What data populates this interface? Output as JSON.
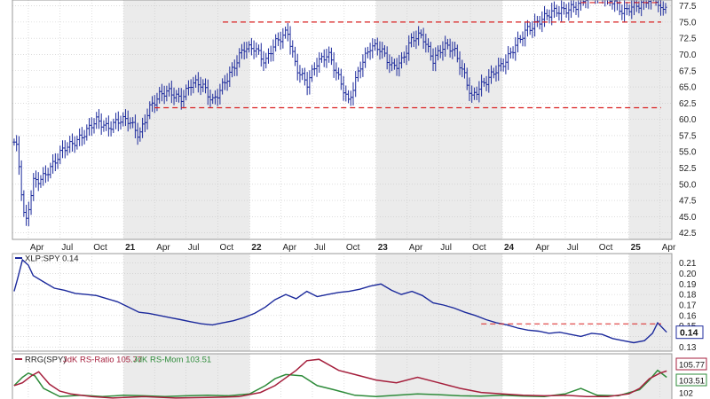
{
  "colors": {
    "price_bars": "#1c2a9c",
    "ratio_line": "#1c2a9c",
    "support_resistance": "#d92020",
    "rs_ratio_line": "#a51f3c",
    "rs_momentum_line": "#2e8b3a",
    "alt_shade": "#ebebeb",
    "grid": "#c8c8c8",
    "panel_border": "#9a9a9a"
  },
  "chart_data": [
    {
      "type": "ohlc",
      "title": "",
      "x_tick_labels": [
        "Apr",
        "Jul",
        "Oct",
        "21",
        "Apr",
        "Jul",
        "Oct",
        "22",
        "Apr",
        "Jul",
        "Oct",
        "23",
        "Apr",
        "Jul",
        "Oct",
        "24",
        "Apr",
        "Jul",
        "Oct",
        "25",
        "Apr"
      ],
      "x_tick_dates": [
        "2020-04-01",
        "2020-07-01",
        "2020-10-01",
        "2021-01-01",
        "2021-04-01",
        "2021-07-01",
        "2021-10-01",
        "2022-01-01",
        "2022-04-01",
        "2022-07-01",
        "2022-10-01",
        "2023-01-01",
        "2023-04-01",
        "2023-07-01",
        "2023-10-01",
        "2024-01-01",
        "2024-04-01",
        "2024-07-01",
        "2024-10-01",
        "2025-01-01",
        "2025-04-01"
      ],
      "y_tick_labels": [
        "42.5",
        "45.0",
        "47.5",
        "50.0",
        "52.5",
        "55.0",
        "57.5",
        "60.0",
        "62.5",
        "65.0",
        "67.5",
        "70.0",
        "72.5",
        "75.0",
        "77.5"
      ],
      "ylim": [
        41.5,
        78.4
      ],
      "series": [
        {
          "dates": [
            "2020-02-20",
            "2020-03-01",
            "2020-03-10",
            "2020-03-23",
            "2020-04-15",
            "2020-05-15",
            "2020-06-15",
            "2020-07-15",
            "2020-08-15",
            "2020-09-15",
            "2020-10-15",
            "2020-11-15",
            "2020-12-15",
            "2021-01-15",
            "2021-02-15",
            "2021-03-15",
            "2021-04-15",
            "2021-05-15",
            "2021-06-15",
            "2021-07-15",
            "2021-08-15",
            "2021-09-15",
            "2021-10-15",
            "2021-11-15",
            "2021-12-15",
            "2022-01-15",
            "2022-02-15",
            "2022-03-15",
            "2022-04-20",
            "2022-05-15",
            "2022-06-15",
            "2022-07-15",
            "2022-08-15",
            "2022-09-15",
            "2022-10-13",
            "2022-11-15",
            "2022-12-15",
            "2023-01-15",
            "2023-02-15",
            "2023-03-15",
            "2023-04-15",
            "2023-05-15",
            "2023-06-15",
            "2023-07-15",
            "2023-08-15",
            "2023-09-15",
            "2023-10-05",
            "2023-11-15",
            "2023-12-15",
            "2024-01-15",
            "2024-02-15",
            "2024-03-15",
            "2024-04-15",
            "2024-05-15",
            "2024-06-15",
            "2024-07-15",
            "2024-08-15",
            "2024-09-15",
            "2024-10-15",
            "2024-11-15",
            "2024-12-15",
            "2025-01-15",
            "2025-02-15",
            "2025-03-15",
            "2025-04-05",
            "2025-04-20"
          ],
          "close": [
            56.5,
            55.0,
            49.5,
            43.0,
            50.5,
            51.5,
            53.0,
            55.5,
            57.0,
            58.0,
            59.5,
            59.0,
            60.0,
            59.5,
            57.5,
            62.0,
            63.5,
            64.0,
            63.5,
            65.5,
            65.0,
            63.0,
            65.5,
            67.5,
            71.0,
            71.5,
            68.5,
            71.5,
            74.0,
            68.0,
            65.0,
            69.0,
            70.5,
            66.0,
            62.5,
            68.5,
            71.0,
            70.5,
            68.5,
            69.0,
            72.0,
            73.0,
            69.5,
            71.0,
            70.5,
            67.0,
            63.5,
            65.5,
            68.0,
            69.5,
            71.5,
            74.0,
            75.5,
            76.0,
            76.5,
            77.5,
            78.0,
            79.0,
            79.5,
            78.5,
            76.0,
            77.5,
            78.5,
            79.0,
            76.0,
            78.0
          ]
        }
      ],
      "reference_lines": [
        {
          "y": 75.0,
          "from": "2021-10-15"
        },
        {
          "y": 61.8,
          "from": "2021-04-01"
        },
        {
          "y": 78.0,
          "from": "2024-08-15"
        }
      ]
    },
    {
      "type": "line",
      "series": [
        {
          "name": "XLP:SPY 0.14",
          "dates": [
            "2020-02-20",
            "2020-03-01",
            "2020-03-15",
            "2020-04-01",
            "2020-04-15",
            "2020-05-15",
            "2020-06-15",
            "2020-07-15",
            "2020-08-15",
            "2020-09-15",
            "2020-10-15",
            "2020-11-15",
            "2020-12-15",
            "2021-01-15",
            "2021-02-15",
            "2021-03-15",
            "2021-04-15",
            "2021-05-15",
            "2021-06-15",
            "2021-07-15",
            "2021-08-15",
            "2021-09-15",
            "2021-10-15",
            "2021-11-15",
            "2021-12-15",
            "2022-01-15",
            "2022-02-15",
            "2022-03-15",
            "2022-04-15",
            "2022-05-15",
            "2022-06-15",
            "2022-07-15",
            "2022-08-15",
            "2022-09-15",
            "2022-10-15",
            "2022-11-15",
            "2022-12-15",
            "2023-01-15",
            "2023-02-15",
            "2023-03-15",
            "2023-04-15",
            "2023-05-15",
            "2023-06-15",
            "2023-07-15",
            "2023-08-15",
            "2023-09-15",
            "2023-10-15",
            "2023-11-15",
            "2023-12-15",
            "2024-01-15",
            "2024-02-15",
            "2024-03-15",
            "2024-04-15",
            "2024-05-15",
            "2024-06-15",
            "2024-07-15",
            "2024-08-15",
            "2024-09-15",
            "2024-10-15",
            "2024-11-15",
            "2024-12-15",
            "2025-01-15",
            "2025-02-15",
            "2025-03-10",
            "2025-03-25",
            "2025-04-20"
          ],
          "values": [
            0.183,
            0.195,
            0.213,
            0.208,
            0.198,
            0.192,
            0.186,
            0.184,
            0.181,
            0.18,
            0.179,
            0.176,
            0.173,
            0.168,
            0.163,
            0.162,
            0.16,
            0.158,
            0.156,
            0.154,
            0.152,
            0.151,
            0.153,
            0.155,
            0.158,
            0.162,
            0.168,
            0.175,
            0.18,
            0.176,
            0.183,
            0.178,
            0.18,
            0.182,
            0.183,
            0.185,
            0.188,
            0.19,
            0.184,
            0.18,
            0.183,
            0.179,
            0.172,
            0.17,
            0.167,
            0.163,
            0.16,
            0.156,
            0.153,
            0.151,
            0.148,
            0.146,
            0.145,
            0.143,
            0.144,
            0.142,
            0.14,
            0.143,
            0.142,
            0.138,
            0.136,
            0.134,
            0.136,
            0.143,
            0.153,
            0.144
          ]
        }
      ],
      "y_tick_labels": [
        "0.13",
        "0.14",
        "0.15",
        "0.16",
        "0.17",
        "0.18",
        "0.19",
        "0.20",
        "0.21"
      ],
      "ylim": [
        0.126,
        0.219
      ],
      "reference_lines": [
        {
          "y": 0.152,
          "from": "2023-11-01"
        }
      ],
      "last_value_label": "0.14",
      "legend": "XLP:SPY 0.14"
    },
    {
      "type": "line",
      "legend": {
        "prefix": "RRG(SPY)",
        "ratio_text": "JdK RS-Ratio 105.77",
        "momentum_text": "JdK RS-Mom 103.51"
      },
      "series": [
        {
          "name": "JdK RS-Ratio",
          "dates": [
            "2020-02-20",
            "2020-03-15",
            "2020-04-10",
            "2020-05-01",
            "2020-06-01",
            "2020-07-01",
            "2020-08-01",
            "2020-10-01",
            "2020-12-01",
            "2021-03-01",
            "2021-06-01",
            "2021-09-01",
            "2021-12-01",
            "2022-02-01",
            "2022-03-15",
            "2022-05-15",
            "2022-06-15",
            "2022-07-20",
            "2022-09-15",
            "2022-11-01",
            "2023-01-01",
            "2023-03-01",
            "2023-05-01",
            "2023-07-01",
            "2023-09-01",
            "2023-11-01",
            "2024-01-01",
            "2024-03-01",
            "2024-05-01",
            "2024-07-01",
            "2024-09-01",
            "2024-11-01",
            "2025-01-01",
            "2025-02-01",
            "2025-03-01",
            "2025-04-01",
            "2025-04-20"
          ],
          "values": [
            100.5,
            101.5,
            104.0,
            105.5,
            101.0,
            98.5,
            97.5,
            96.5,
            96.0,
            96.5,
            96.0,
            96.2,
            96.5,
            98.0,
            100.5,
            106.0,
            109.5,
            110.0,
            106.0,
            104.5,
            102.5,
            101.5,
            103.5,
            101.5,
            99.5,
            98.0,
            97.5,
            97.0,
            96.8,
            97.0,
            96.5,
            96.5,
            97.5,
            99.5,
            103.0,
            105.0,
            105.77
          ]
        },
        {
          "name": "JdK RS-Mom",
          "dates": [
            "2020-02-20",
            "2020-03-15",
            "2020-04-01",
            "2020-04-20",
            "2020-05-15",
            "2020-07-01",
            "2020-09-01",
            "2020-11-01",
            "2021-01-01",
            "2021-03-01",
            "2021-05-01",
            "2021-07-01",
            "2021-09-01",
            "2021-11-01",
            "2022-01-01",
            "2022-02-15",
            "2022-03-15",
            "2022-04-15",
            "2022-06-01",
            "2022-07-15",
            "2022-09-01",
            "2022-11-01",
            "2023-01-01",
            "2023-03-01",
            "2023-05-01",
            "2023-07-01",
            "2023-09-01",
            "2023-11-01",
            "2024-01-01",
            "2024-03-01",
            "2024-05-01",
            "2024-07-01",
            "2024-08-15",
            "2024-10-01",
            "2024-12-01",
            "2025-02-01",
            "2025-03-01",
            "2025-03-25",
            "2025-04-20"
          ],
          "values": [
            100.5,
            103.5,
            105.0,
            104.0,
            99.5,
            96.5,
            97.0,
            96.5,
            97.0,
            96.8,
            96.5,
            96.8,
            97.0,
            96.8,
            97.5,
            100.5,
            103.0,
            104.5,
            104.0,
            100.5,
            99.0,
            97.0,
            96.5,
            97.0,
            97.5,
            97.2,
            96.8,
            96.7,
            97.0,
            96.7,
            96.5,
            97.5,
            99.5,
            97.0,
            96.8,
            99.0,
            102.5,
            106.0,
            103.51
          ]
        }
      ],
      "right_labels": [
        "105.77",
        "103.51",
        "102"
      ],
      "ylim": [
        95.0,
        112.0
      ]
    }
  ]
}
